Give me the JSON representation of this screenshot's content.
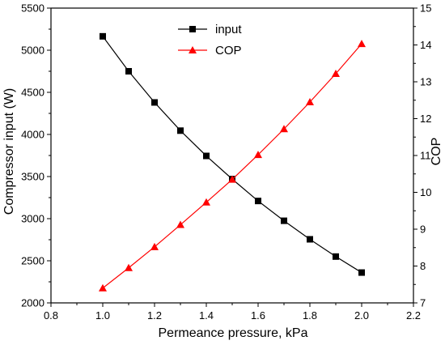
{
  "chart_data": {
    "type": "line",
    "xlabel": "Permeance pressure, kPa",
    "ylabel": "Compressor input (W)",
    "y2label": "COP",
    "xlim": [
      0.8,
      2.2
    ],
    "ylim": [
      2000,
      5500
    ],
    "y2lim": [
      7,
      15
    ],
    "x_ticks": [
      "0.8",
      "1.0",
      "1.2",
      "1.4",
      "1.6",
      "1.8",
      "2.0",
      "2.2"
    ],
    "y_ticks": [
      "2000",
      "2500",
      "3000",
      "3500",
      "4000",
      "4500",
      "5000",
      "5500"
    ],
    "y2_ticks": [
      "7",
      "8",
      "9",
      "10",
      "11",
      "12",
      "13",
      "14",
      "15"
    ],
    "x": [
      1.0,
      1.1,
      1.2,
      1.3,
      1.4,
      1.5,
      1.6,
      1.7,
      1.8,
      1.9,
      2.0
    ],
    "series": [
      {
        "name": "input",
        "axis": "left",
        "marker": "square",
        "color": "#000000",
        "values": [
          5165,
          4750,
          4380,
          4045,
          3745,
          3470,
          3210,
          2975,
          2755,
          2550,
          2360
        ]
      },
      {
        "name": "COP",
        "axis": "right",
        "marker": "triangle",
        "color": "#ff0000",
        "values": [
          7.4,
          7.95,
          8.52,
          9.12,
          9.73,
          10.35,
          11.02,
          11.72,
          12.45,
          13.22,
          14.03
        ]
      }
    ],
    "legend_position": "top-center",
    "grid": false
  }
}
